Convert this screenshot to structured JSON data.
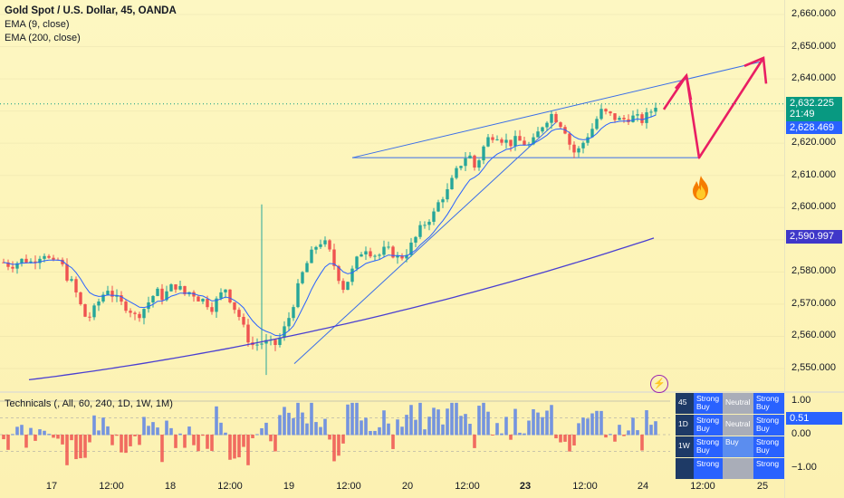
{
  "header": {
    "title": "Gold Spot / U.S. Dollar, 45, OANDA",
    "ema9_label": "EMA (9, close)",
    "ema200_label": "EMA (200, close)"
  },
  "technicals_label": "Technicals (, All, 60, 240, 1D, 1W, 1M)",
  "colors": {
    "up": "#26a69a",
    "down": "#ef5350",
    "ema9": "#2962ff",
    "ema200": "#4a3fd1",
    "pattern": "#3a6ee8",
    "projection": "#e91e63",
    "tech_bar_up": "#5c84e6",
    "tech_bar_down": "#ef5350",
    "current_price_bg": "#089981",
    "ema9_tag_bg": "#2962ff",
    "ema200_tag_bg": "#3f37c9"
  },
  "price_axis": {
    "labels": [
      "2,660.000",
      "2,650.000",
      "2,640.000",
      "2,630.000",
      "2,620.000",
      "2,610.000",
      "2,600.000",
      "2,590.000",
      "2,580.000",
      "2,570.000",
      "2,560.000",
      "2,550.000"
    ],
    "current_price": "2,632.225",
    "countdown": "21:49",
    "ema9_value": "2,628.469",
    "ema200_value": "2,590.997"
  },
  "osc_axis": {
    "labels": [
      "1.00",
      "0.00",
      "−1.00"
    ],
    "current": "0.51"
  },
  "time_axis": {
    "labels": [
      "17",
      "12:00",
      "18",
      "12:00",
      "19",
      "12:00",
      "20",
      "12:00",
      "23",
      "12:00",
      "24",
      "12:00",
      "25"
    ],
    "bold_index": 8
  },
  "tech_table": {
    "rows": [
      {
        "tf": "45",
        "summary": "Strong Buy",
        "ma": "Neutral",
        "osc": "Strong Buy"
      },
      {
        "tf": "1D",
        "summary": "Strong Buy",
        "ma": "Neutral",
        "osc": "Strong Buy"
      },
      {
        "tf": "1W",
        "summary": "Strong Buy",
        "ma": "Buy",
        "osc": "Strong Buy"
      },
      {
        "tf": "",
        "summary": "Strong",
        "ma": "",
        "osc": "Strong"
      }
    ]
  },
  "chart_data": {
    "type": "candlestick",
    "title": "Gold Spot / U.S. Dollar, 45, OANDA",
    "ylim": [
      2545,
      2664
    ],
    "price_ticks": [
      2660,
      2650,
      2640,
      2630,
      2620,
      2610,
      2600,
      2590,
      2580,
      2570,
      2560,
      2550
    ],
    "x_categories": [
      "17",
      "12:00",
      "18",
      "12:00",
      "19",
      "12:00",
      "20",
      "12:00",
      "23",
      "12:00",
      "24",
      "12:00",
      "25"
    ],
    "series": [
      {
        "name": "EMA (9, close)",
        "last_value": 2628.469
      },
      {
        "name": "EMA (200, close)",
        "last_value": 2590.997
      }
    ],
    "current_price": 2632.225,
    "close_path": [
      2583,
      2582,
      2583,
      2584,
      2583,
      2585,
      2586,
      2582,
      2584,
      2579,
      2576,
      2570,
      2565,
      2568,
      2572,
      2575,
      2572,
      2570,
      2569,
      2566,
      2568,
      2571,
      2574,
      2572,
      2575,
      2576,
      2573,
      2574,
      2572,
      2571,
      2569,
      2572,
      2575,
      2570,
      2566,
      2560,
      2557,
      2558,
      2558,
      2557,
      2560,
      2565,
      2572,
      2579,
      2584,
      2588,
      2590,
      2586,
      2580,
      2575,
      2579,
      2584,
      2588,
      2586,
      2585,
      2587,
      2586,
      2584,
      2586,
      2589,
      2593,
      2596,
      2598,
      2603,
      2605,
      2610,
      2614,
      2617,
      2612,
      2618,
      2622,
      2623,
      2621,
      2620,
      2621,
      2620,
      2619,
      2623,
      2627,
      2629,
      2627,
      2624,
      2617,
      2618,
      2622,
      2625,
      2630,
      2629,
      2628,
      2627,
      2628,
      2628,
      2627,
      2629,
      2632
    ],
    "pattern_lines": [
      {
        "from": [
          0.43,
          2615.5
        ],
        "to": [
          0.83,
          2615.5
        ]
      },
      {
        "from": [
          0.43,
          2615.5
        ],
        "to": [
          0.91,
          2646
        ]
      },
      {
        "from": [
          0.35,
          2552
        ],
        "to": [
          0.67,
          2628
        ]
      }
    ],
    "projection": [
      [
        2631,
        2630
      ],
      [
        2641,
        2615
      ],
      [
        2647
      ]
    ],
    "technicals_oscillator": {
      "range": [
        -1,
        1
      ],
      "current": 0.51
    }
  }
}
